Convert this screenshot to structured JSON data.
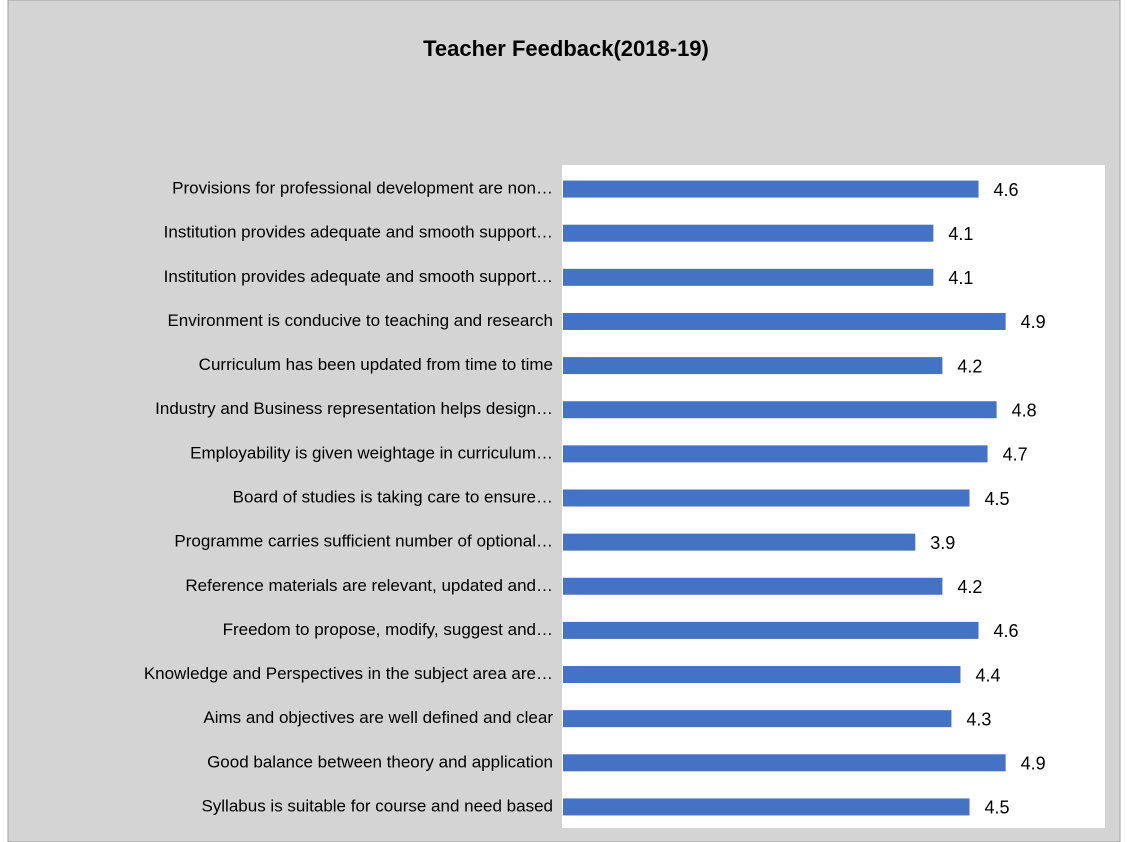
{
  "chart_data": {
    "type": "bar",
    "orientation": "horizontal",
    "title": "Teacher Feedback(2018-19)",
    "categories": [
      "Provisions for professional development are non…",
      "Institution provides adequate and smooth support…",
      "Institution provides adequate and smooth support…",
      "Environment is conducive to teaching and research",
      "Curriculum has been updated from time to time",
      "Industry and Business representation helps design…",
      "Employability is given weightage in curriculum…",
      "Board of studies is taking care to ensure…",
      "Programme carries sufficient number of optional…",
      "Reference materials are relevant, updated and…",
      "Freedom to propose, modify, suggest and…",
      "Knowledge and Perspectives in the subject area are…",
      "Aims and objectives are well defined and clear",
      "Good balance between theory and application",
      "Syllabus is suitable for course and need based"
    ],
    "values": [
      4.6,
      4.1,
      4.1,
      4.9,
      4.2,
      4.8,
      4.7,
      4.5,
      3.9,
      4.2,
      4.6,
      4.4,
      4.3,
      4.9,
      4.5
    ],
    "color": "#4472c4",
    "xlim": [
      0,
      6
    ]
  }
}
